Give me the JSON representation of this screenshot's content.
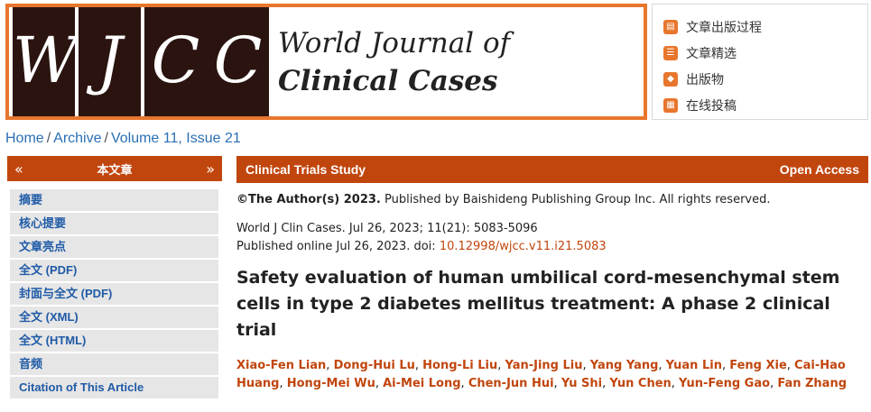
{
  "banner": {
    "tiles": [
      "W",
      "J",
      "C",
      "C"
    ],
    "name_line1": "World Journal of",
    "name_line2": "Clinical Cases"
  },
  "side_links": [
    {
      "label": "文章出版过程",
      "icon": "document-icon"
    },
    {
      "label": "文章精选",
      "icon": "list-icon"
    },
    {
      "label": "出版物",
      "icon": "book-icon"
    },
    {
      "label": "在线投稿",
      "icon": "clipboard-icon"
    }
  ],
  "breadcrumb": {
    "home": "Home",
    "archive": "Archive",
    "issue": "Volume 11, Issue 21"
  },
  "left_panel": {
    "title": "本文章",
    "prev_glyph": "«",
    "next_glyph": "»",
    "items": [
      "摘要",
      "核心提要",
      "文章亮点",
      "全文 (PDF)",
      "封面与全文 (PDF)",
      "全文 (XML)",
      "全文 (HTML)",
      "音频",
      "Citation of This Article"
    ]
  },
  "article": {
    "type": "Clinical Trials Study",
    "access": "Open Access",
    "copyright_bold": "©The Author(s) 2023.",
    "copyright_rest": " Published by Baishideng Publishing Group Inc. All rights reserved.",
    "citation_line": "World J Clin Cases. Jul 26, 2023; 11(21): 5083-5096",
    "published_prefix": "Published online Jul 26, 2023. doi: ",
    "doi": "10.12998/wjcc.v11.i21.5083",
    "title": "Safety evaluation of human umbilical cord-mesenchymal stem cells in type 2 diabetes mellitus treatment: A phase 2 clinical trial",
    "authors": [
      "Xiao-Fen Lian",
      "Dong-Hui Lu",
      "Hong-Li Liu",
      "Yan-Jing Liu",
      "Yang Yang",
      "Yuan Lin",
      "Feng Xie",
      "Cai-Hao Huang",
      "Hong-Mei Wu",
      "Ai-Mei Long",
      "Chen-Jun Hui",
      "Yu Shi",
      "Yun Chen",
      "Yun-Feng Gao",
      "Fan Zhang"
    ]
  },
  "colors": {
    "accent": "#c1460e",
    "banner_border": "#e8762d",
    "link": "#1f5aa6"
  }
}
